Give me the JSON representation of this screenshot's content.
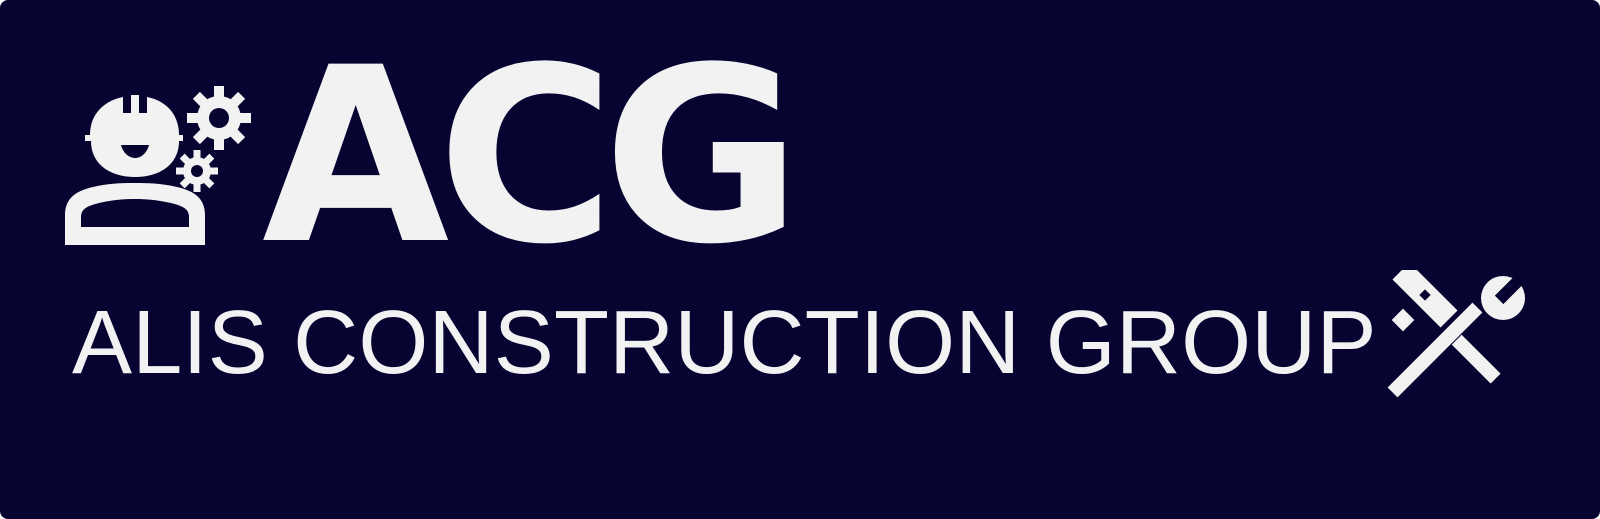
{
  "logo": {
    "acronym": "ACG",
    "company_name": "ALIS CONSTRUCTION GROUP",
    "icons": [
      "worker-with-gears-icon",
      "wrench-and-hammer-icon"
    ]
  },
  "colors": {
    "background": "#070431",
    "foreground": "#f2f2f2"
  }
}
